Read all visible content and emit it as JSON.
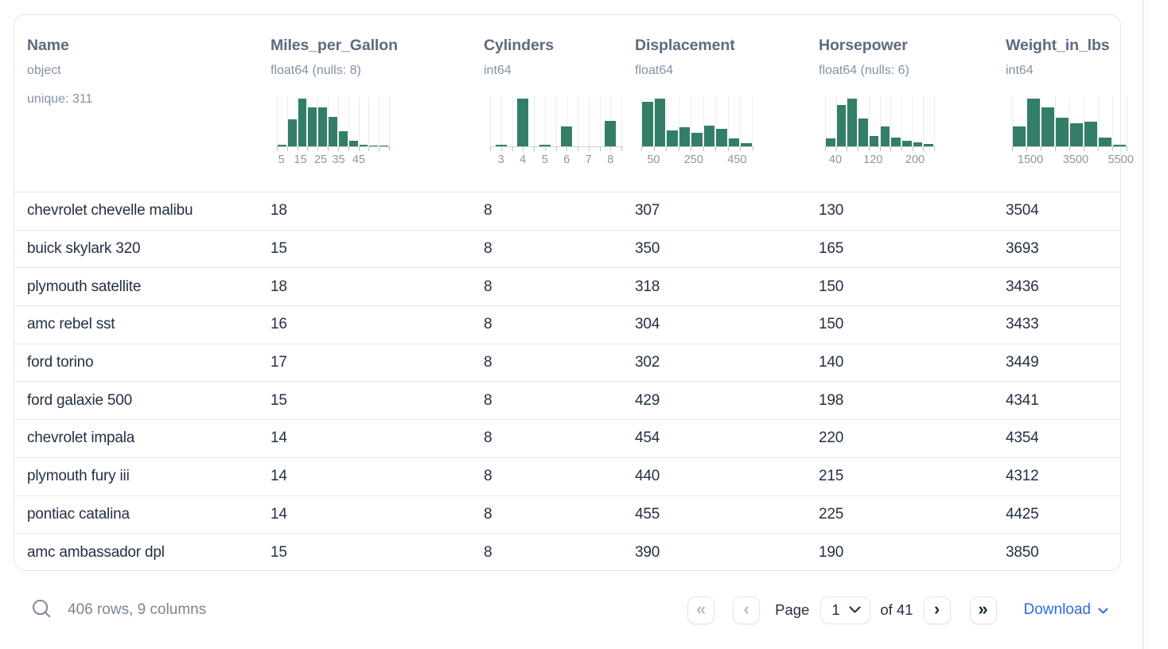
{
  "table": {
    "columns": [
      {
        "name": "Name",
        "dtype": "object",
        "unique": "unique: 311"
      },
      {
        "name": "Miles_per_Gallon",
        "dtype": "float64 (nulls: 8)",
        "hist": {
          "style": "packed",
          "width": 141,
          "bars": [
            0.03,
            0.56,
            1.0,
            0.82,
            0.81,
            0.61,
            0.31,
            0.12,
            0.04,
            0,
            0
          ],
          "labels": [
            {
              "t": "5",
              "f": 0.04
            },
            {
              "t": "15",
              "f": 0.21
            },
            {
              "t": "25",
              "f": 0.39
            },
            {
              "t": "35",
              "f": 0.55
            },
            {
              "t": "45",
              "f": 0.73
            }
          ]
        }
      },
      {
        "name": "Cylinders",
        "dtype": "int64",
        "hist": {
          "style": "spaced",
          "width": 165,
          "bars": [
            0.03,
            1.0,
            0.03,
            0.41,
            0,
            0.53
          ],
          "labels": [
            {
              "t": "3",
              "f": 0.083
            },
            {
              "t": "4",
              "f": 0.25
            },
            {
              "t": "5",
              "f": 0.417
            },
            {
              "t": "6",
              "f": 0.583
            },
            {
              "t": "7",
              "f": 0.75
            },
            {
              "t": "8",
              "f": 0.917
            }
          ]
        }
      },
      {
        "name": "Displacement",
        "dtype": "float64",
        "hist": {
          "style": "packed",
          "width": 140,
          "bars": [
            0.94,
            1.0,
            0.33,
            0.4,
            0.29,
            0.43,
            0.37,
            0.17,
            0.06
          ],
          "labels": [
            {
              "t": "50",
              "f": 0.11
            },
            {
              "t": "250",
              "f": 0.47
            },
            {
              "t": "450",
              "f": 0.86
            }
          ]
        }
      },
      {
        "name": "Horsepower",
        "dtype": "float64 (nulls: 6)",
        "hist": {
          "style": "packed",
          "width": 137,
          "bars": [
            0.16,
            0.86,
            1.0,
            0.58,
            0.22,
            0.42,
            0.19,
            0.12,
            0.08,
            0.05
          ],
          "labels": [
            {
              "t": "40",
              "f": 0.095
            },
            {
              "t": "120",
              "f": 0.44
            },
            {
              "t": "200",
              "f": 0.825
            }
          ]
        }
      },
      {
        "name": "Weight_in_lbs",
        "dtype": "int64",
        "hist": {
          "style": "packed",
          "width": 144,
          "bars": [
            0.42,
            1.0,
            0.82,
            0.6,
            0.48,
            0.52,
            0.18,
            0.03
          ],
          "labels": [
            {
              "t": "1500",
              "f": 0.16
            },
            {
              "t": "3500",
              "f": 0.555
            },
            {
              "t": "5500",
              "f": 0.95
            }
          ]
        }
      }
    ],
    "rows": [
      [
        "chevrolet chevelle malibu",
        "18",
        "8",
        "307",
        "130",
        "3504"
      ],
      [
        "buick skylark 320",
        "15",
        "8",
        "350",
        "165",
        "3693"
      ],
      [
        "plymouth satellite",
        "18",
        "8",
        "318",
        "150",
        "3436"
      ],
      [
        "amc rebel sst",
        "16",
        "8",
        "304",
        "150",
        "3433"
      ],
      [
        "ford torino",
        "17",
        "8",
        "302",
        "140",
        "3449"
      ],
      [
        "ford galaxie 500",
        "15",
        "8",
        "429",
        "198",
        "4341"
      ],
      [
        "chevrolet impala",
        "14",
        "8",
        "454",
        "220",
        "4354"
      ],
      [
        "plymouth fury iii",
        "14",
        "8",
        "440",
        "215",
        "4312"
      ],
      [
        "pontiac catalina",
        "14",
        "8",
        "455",
        "225",
        "4425"
      ],
      [
        "amc ambassador dpl",
        "15",
        "8",
        "390",
        "190",
        "3850"
      ]
    ]
  },
  "footer": {
    "summary": "406 rows, 9 columns",
    "pagination": {
      "page_label": "Page",
      "page_value": "1",
      "of_label": "of 41",
      "icons": {
        "first_page": "«",
        "prev_page": "‹",
        "next_page": "›",
        "last_page": "»"
      }
    },
    "download_label": "Download"
  },
  "icons": {
    "search": "magnifier",
    "select_caret": "chevron-down",
    "download_caret": "chevron-down"
  },
  "colors": {
    "histogram_bar": "#337e69",
    "download_link": "#2d6be3",
    "header_title": "#5c6b82",
    "header_dtype": "#8391a4",
    "row_text": "#243044",
    "separator": "#e3e9f1",
    "disabled_chevron": "#b3bcc8",
    "enabled_chevron": "#202e41"
  }
}
